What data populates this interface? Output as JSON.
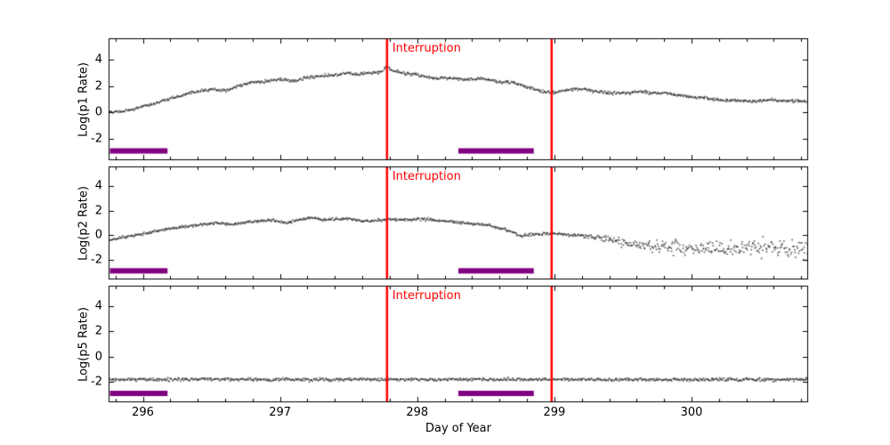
{
  "figure": {
    "background": "#ffffff",
    "frame_color": "#000000",
    "marker_color": "#2f2f2f",
    "bar_color": "#800080",
    "annotation_color": "#ff0000"
  },
  "chart_data": [
    {
      "type": "scatter",
      "ylabel": "Log(p1 Rate)",
      "xlabel": "",
      "grid": false,
      "xlim": [
        295.75,
        300.85
      ],
      "ylim": [
        -3.6,
        5.6
      ],
      "x_ticks": [
        296,
        297,
        298,
        299,
        300
      ],
      "y_ticks": [
        4,
        2,
        0,
        -2
      ],
      "vlines": [
        297.78,
        298.98
      ],
      "vline_label": "Interruption",
      "highlight_bars": [
        [
          295.76,
          296.18
        ],
        [
          298.3,
          298.85
        ]
      ],
      "bar_y": -2.9,
      "n_points": 950,
      "noise": [
        [
          295.75,
          0.05
        ],
        [
          300.85,
          0.06
        ]
      ],
      "trend": [
        [
          295.75,
          0.0
        ],
        [
          295.9,
          0.15
        ],
        [
          296.0,
          0.45
        ],
        [
          296.1,
          0.75
        ],
        [
          296.2,
          1.05
        ],
        [
          296.3,
          1.35
        ],
        [
          296.4,
          1.6
        ],
        [
          296.5,
          1.75
        ],
        [
          296.6,
          1.65
        ],
        [
          296.7,
          2.0
        ],
        [
          296.8,
          2.3
        ],
        [
          296.9,
          2.35
        ],
        [
          297.0,
          2.5
        ],
        [
          297.1,
          2.35
        ],
        [
          297.2,
          2.65
        ],
        [
          297.3,
          2.75
        ],
        [
          297.4,
          2.8
        ],
        [
          297.5,
          3.0
        ],
        [
          297.55,
          2.85
        ],
        [
          297.65,
          2.95
        ],
        [
          297.75,
          3.1
        ],
        [
          297.78,
          3.5
        ],
        [
          297.82,
          3.15
        ],
        [
          297.9,
          2.95
        ],
        [
          298.0,
          2.85
        ],
        [
          298.1,
          2.6
        ],
        [
          298.2,
          2.6
        ],
        [
          298.3,
          2.55
        ],
        [
          298.4,
          2.5
        ],
        [
          298.5,
          2.55
        ],
        [
          298.6,
          2.3
        ],
        [
          298.7,
          2.25
        ],
        [
          298.8,
          1.95
        ],
        [
          298.9,
          1.6
        ],
        [
          299.0,
          1.5
        ],
        [
          299.1,
          1.75
        ],
        [
          299.2,
          1.8
        ],
        [
          299.3,
          1.6
        ],
        [
          299.4,
          1.5
        ],
        [
          299.5,
          1.45
        ],
        [
          299.6,
          1.55
        ],
        [
          299.7,
          1.5
        ],
        [
          299.8,
          1.45
        ],
        [
          299.9,
          1.3
        ],
        [
          300.0,
          1.2
        ],
        [
          300.1,
          1.05
        ],
        [
          300.2,
          0.95
        ],
        [
          300.3,
          0.9
        ],
        [
          300.45,
          0.85
        ],
        [
          300.6,
          0.95
        ],
        [
          300.7,
          0.9
        ],
        [
          300.85,
          0.8
        ]
      ]
    },
    {
      "type": "scatter",
      "ylabel": "Log(p2 Rate)",
      "xlabel": "",
      "grid": false,
      "xlim": [
        295.75,
        300.85
      ],
      "ylim": [
        -3.6,
        5.6
      ],
      "x_ticks": [
        296,
        297,
        298,
        299,
        300
      ],
      "y_ticks": [
        4,
        2,
        0,
        -2
      ],
      "vlines": [
        297.78,
        298.98
      ],
      "vline_label": "Interruption",
      "highlight_bars": [
        [
          295.76,
          296.18
        ],
        [
          298.3,
          298.85
        ]
      ],
      "bar_y": -2.9,
      "n_points": 950,
      "noise": [
        [
          295.75,
          0.05
        ],
        [
          299.2,
          0.06
        ],
        [
          299.6,
          0.22
        ],
        [
          300.0,
          0.3
        ],
        [
          300.85,
          0.4
        ]
      ],
      "trend": [
        [
          295.75,
          -0.45
        ],
        [
          295.85,
          -0.2
        ],
        [
          295.95,
          0.05
        ],
        [
          296.05,
          0.2
        ],
        [
          296.15,
          0.45
        ],
        [
          296.25,
          0.6
        ],
        [
          296.35,
          0.75
        ],
        [
          296.45,
          0.9
        ],
        [
          296.55,
          1.0
        ],
        [
          296.65,
          0.85
        ],
        [
          296.75,
          1.05
        ],
        [
          296.85,
          1.15
        ],
        [
          296.95,
          1.2
        ],
        [
          297.05,
          1.0
        ],
        [
          297.15,
          1.3
        ],
        [
          297.25,
          1.45
        ],
        [
          297.3,
          1.25
        ],
        [
          297.4,
          1.3
        ],
        [
          297.5,
          1.35
        ],
        [
          297.6,
          1.15
        ],
        [
          297.7,
          1.2
        ],
        [
          297.8,
          1.3
        ],
        [
          297.9,
          1.25
        ],
        [
          298.0,
          1.35
        ],
        [
          298.1,
          1.25
        ],
        [
          298.2,
          1.15
        ],
        [
          298.3,
          1.05
        ],
        [
          298.4,
          0.95
        ],
        [
          298.5,
          0.85
        ],
        [
          298.55,
          0.7
        ],
        [
          298.65,
          0.45
        ],
        [
          298.7,
          0.25
        ],
        [
          298.75,
          -0.05
        ],
        [
          298.82,
          0.05
        ],
        [
          298.9,
          0.1
        ],
        [
          299.0,
          0.15
        ],
        [
          299.1,
          0.05
        ],
        [
          299.2,
          -0.05
        ],
        [
          299.3,
          -0.15
        ],
        [
          299.4,
          -0.35
        ],
        [
          299.5,
          -0.55
        ],
        [
          299.6,
          -0.75
        ],
        [
          299.7,
          -0.85
        ],
        [
          299.8,
          -0.95
        ],
        [
          299.9,
          -1.0
        ],
        [
          300.0,
          -1.0
        ],
        [
          300.2,
          -1.05
        ],
        [
          300.4,
          -1.1
        ],
        [
          300.6,
          -1.05
        ],
        [
          300.85,
          -1.1
        ]
      ]
    },
    {
      "type": "scatter",
      "ylabel": "Log(p5 Rate)",
      "xlabel": "Day of Year",
      "grid": false,
      "xlim": [
        295.75,
        300.85
      ],
      "ylim": [
        -3.6,
        5.6
      ],
      "x_ticks": [
        296,
        297,
        298,
        299,
        300
      ],
      "y_ticks": [
        4,
        2,
        0,
        -2
      ],
      "vlines": [
        297.78,
        298.98
      ],
      "vline_label": "Interruption",
      "highlight_bars": [
        [
          295.76,
          296.18
        ],
        [
          298.3,
          298.85
        ]
      ],
      "bar_y": -2.9,
      "n_points": 950,
      "noise": [
        [
          295.75,
          0.06
        ],
        [
          300.85,
          0.06
        ]
      ],
      "trend": [
        [
          295.75,
          -1.82
        ],
        [
          296.5,
          -1.8
        ],
        [
          297.5,
          -1.82
        ],
        [
          298.5,
          -1.8
        ],
        [
          299.5,
          -1.82
        ],
        [
          300.85,
          -1.8
        ]
      ]
    }
  ]
}
